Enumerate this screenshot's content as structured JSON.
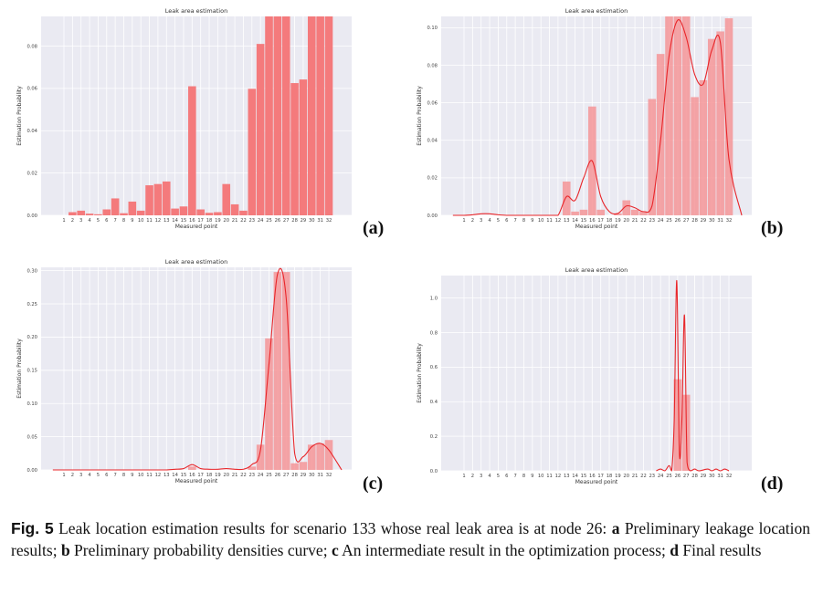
{
  "chart_data": [
    {
      "type": "bar",
      "panel_label": "(a)",
      "title": "Leak area estimation",
      "xlabel": "Measured point",
      "ylabel": "Estimation Probability",
      "categories": [
        "1",
        "2",
        "3",
        "4",
        "5",
        "6",
        "7",
        "8",
        "9",
        "10",
        "11",
        "12",
        "13",
        "14",
        "15",
        "16",
        "17",
        "18",
        "19",
        "20",
        "21",
        "22",
        "23",
        "24",
        "25",
        "26",
        "27",
        "28",
        "29",
        "30",
        "31",
        "32"
      ],
      "values": [
        0.0,
        0.0015,
        0.0022,
        0.0008,
        0.0005,
        0.0028,
        0.008,
        0.001,
        0.0065,
        0.0022,
        0.0142,
        0.0148,
        0.016,
        0.0032,
        0.0042,
        0.061,
        0.0028,
        0.0012,
        0.0015,
        0.0148,
        0.0052,
        0.0022,
        0.0598,
        0.081,
        0.094,
        0.094,
        0.094,
        0.0625,
        0.0642,
        0.094,
        0.094,
        0.094
      ],
      "ylim": [
        0,
        0.094
      ],
      "yticks": [
        "0.00",
        "0.02",
        "0.04",
        "0.06",
        "0.08"
      ],
      "grid": true
    },
    {
      "type": "bar",
      "panel_label": "(b)",
      "title": "Leak area estimation",
      "xlabel": "Measured point",
      "ylabel": "Estimation Probability",
      "categories": [
        "1",
        "2",
        "3",
        "4",
        "5",
        "6",
        "7",
        "8",
        "9",
        "10",
        "11",
        "12",
        "13",
        "14",
        "15",
        "16",
        "17",
        "18",
        "19",
        "20",
        "21",
        "22",
        "23",
        "24",
        "25",
        "26",
        "27",
        "28",
        "29",
        "30",
        "31",
        "32"
      ],
      "values": [
        0.0,
        0.0,
        0.0,
        0.0,
        0.0,
        0.0,
        0.0,
        0.0,
        0.0,
        0.0,
        0.0,
        0.0,
        0.018,
        0.002,
        0.003,
        0.058,
        0.003,
        0.0,
        0.001,
        0.008,
        0.003,
        0.002,
        0.062,
        0.086,
        0.106,
        0.106,
        0.106,
        0.063,
        0.072,
        0.094,
        0.098,
        0.105
      ],
      "density_curve": [
        0.0,
        0.0003,
        0.0008,
        0.0008,
        0.0003,
        0.0,
        0.0,
        0.0,
        0.0,
        0.0,
        0.0,
        0.0,
        0.01,
        0.008,
        0.02,
        0.029,
        0.01,
        0.002,
        0.001,
        0.005,
        0.004,
        0.002,
        0.005,
        0.04,
        0.085,
        0.104,
        0.095,
        0.075,
        0.07,
        0.088,
        0.092,
        0.03
      ],
      "ylim": [
        0,
        0.106
      ],
      "yticks": [
        "0.00",
        "0.02",
        "0.04",
        "0.06",
        "0.08",
        "0.10"
      ],
      "grid": true
    },
    {
      "type": "bar",
      "panel_label": "(c)",
      "title": "Leak area estimation",
      "xlabel": "Measured point",
      "ylabel": "Estimation Probability",
      "categories": [
        "1",
        "2",
        "3",
        "4",
        "5",
        "6",
        "7",
        "8",
        "9",
        "10",
        "11",
        "12",
        "13",
        "14",
        "15",
        "16",
        "17",
        "18",
        "19",
        "20",
        "21",
        "22",
        "23",
        "24",
        "25",
        "26",
        "27",
        "28",
        "29",
        "30",
        "31",
        "32"
      ],
      "values": [
        0.0,
        0.0,
        0.0,
        0.0,
        0.0,
        0.0,
        0.0,
        0.0,
        0.0,
        0.0,
        0.0,
        0.0,
        0.0,
        0.0,
        0.0,
        0.005,
        0.0,
        0.0,
        0.0,
        0.0,
        0.0,
        0.0,
        0.005,
        0.038,
        0.198,
        0.298,
        0.298,
        0.01,
        0.012,
        0.038,
        0.04,
        0.045
      ],
      "density_curve": [
        0.0,
        0.0,
        0.0,
        0.0,
        0.0,
        0.0,
        0.0,
        0.0,
        0.0,
        0.0,
        0.0,
        0.0,
        0.0,
        0.001,
        0.002,
        0.008,
        0.002,
        0.001,
        0.001,
        0.002,
        0.001,
        0.001,
        0.008,
        0.03,
        0.16,
        0.295,
        0.26,
        0.025,
        0.02,
        0.035,
        0.04,
        0.03
      ],
      "ylim": [
        0,
        0.305
      ],
      "yticks": [
        "0.00",
        "0.05",
        "0.10",
        "0.15",
        "0.20",
        "0.25",
        "0.30"
      ],
      "grid": true
    },
    {
      "type": "bar",
      "panel_label": "(d)",
      "title": "Leak area estimation",
      "xlabel": "Measured point",
      "ylabel": "Estimation Probability",
      "categories": [
        "1",
        "2",
        "3",
        "4",
        "5",
        "6",
        "7",
        "8",
        "9",
        "10",
        "11",
        "12",
        "13",
        "14",
        "15",
        "16",
        "17",
        "18",
        "19",
        "20",
        "21",
        "22",
        "23",
        "24",
        "25",
        "26",
        "27",
        "28",
        "29",
        "30",
        "31",
        "32"
      ],
      "values": [
        0.0,
        0.0,
        0.0,
        0.0,
        0.0,
        0.0,
        0.0,
        0.0,
        0.0,
        0.0,
        0.0,
        0.0,
        0.0,
        0.0,
        0.0,
        0.0,
        0.0,
        0.0,
        0.0,
        0.0,
        0.0,
        0.0,
        0.0,
        0.0,
        0.0,
        0.53,
        0.44,
        0.0,
        0.0,
        0.0,
        0.0,
        0.0
      ],
      "density_curve": [
        [
          23.5,
          0.0
        ],
        [
          24.0,
          0.01
        ],
        [
          24.5,
          0.0
        ],
        [
          25.0,
          0.03
        ],
        [
          25.3,
          0.0
        ],
        [
          25.6,
          0.3
        ],
        [
          25.9,
          1.1
        ],
        [
          26.2,
          0.1
        ],
        [
          26.5,
          0.3
        ],
        [
          26.8,
          0.9
        ],
        [
          27.1,
          0.05
        ],
        [
          27.5,
          0.0
        ],
        [
          28.0,
          0.01
        ],
        [
          28.5,
          0.0
        ],
        [
          29.5,
          0.01
        ],
        [
          30.0,
          0.0
        ],
        [
          30.5,
          0.01
        ],
        [
          31.0,
          0.0
        ],
        [
          31.5,
          0.01
        ],
        [
          32.0,
          0.0
        ]
      ],
      "ylim": [
        0,
        1.13
      ],
      "yticks": [
        "0.0",
        "0.2",
        "0.4",
        "0.6",
        "0.8",
        "1.0"
      ],
      "grid": true
    }
  ],
  "caption": {
    "fig_label": "Fig. 5",
    "intro": "Leak location estimation results for scenario 133 whose real leak area is at node 26:",
    "a_key": "a",
    "a_text": "Preliminary leakage location results;",
    "b_key": "b",
    "b_text": "Preliminary probability densities curve;",
    "c_key": "c",
    "c_text": "An intermediate result in the optimization process;",
    "d_key": "d",
    "d_text": "Final results"
  },
  "colors": {
    "bar": "#f47a7c",
    "bar_light": "#f59598",
    "curve": "#e8262a",
    "panel_bg": "#eaeaf2",
    "grid": "#ffffff"
  }
}
